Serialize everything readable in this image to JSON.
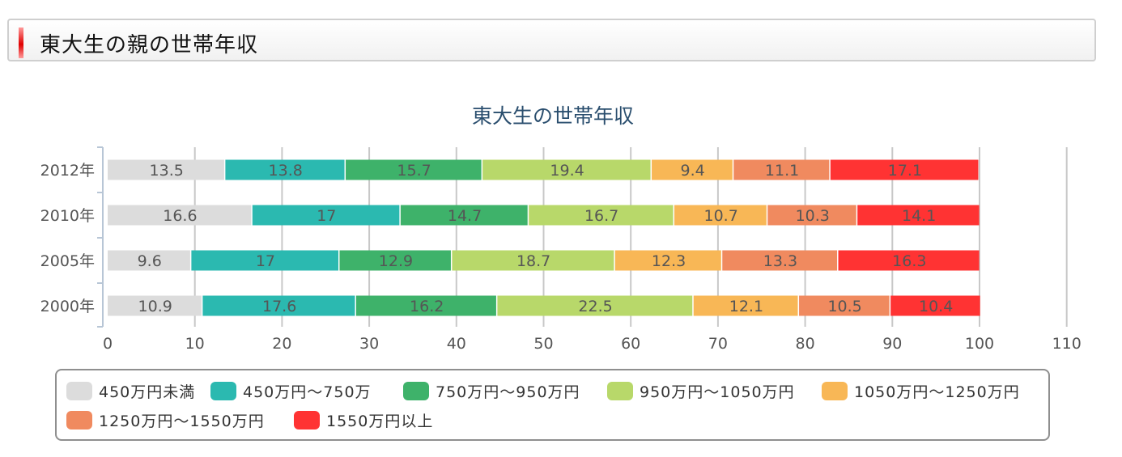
{
  "header": {
    "title": "東大生の親の世帯年収"
  },
  "chart_data": {
    "type": "bar",
    "orientation": "horizontal",
    "stacked": true,
    "title": "東大生の世帯年収",
    "xlabel": "",
    "ylabel": "",
    "xlim": [
      0,
      110
    ],
    "x_ticks": [
      "0",
      "10",
      "20",
      "30",
      "40",
      "50",
      "60",
      "70",
      "80",
      "90",
      "100",
      "110"
    ],
    "categories": [
      "2012年",
      "2010年",
      "2005年",
      "2000年"
    ],
    "series": [
      {
        "name": "450万円未満",
        "color": "#dcdcdc",
        "values": [
          13.5,
          16.6,
          9.6,
          10.9
        ]
      },
      {
        "name": "450万円～750万",
        "color": "#2bb9b0",
        "values": [
          13.8,
          17,
          17,
          17.6
        ]
      },
      {
        "name": "750万円～950万円",
        "color": "#3eb26a",
        "values": [
          15.7,
          14.7,
          12.9,
          16.2
        ]
      },
      {
        "name": "950万円～1050万円",
        "color": "#b8d86a",
        "values": [
          19.4,
          16.7,
          18.7,
          22.5
        ]
      },
      {
        "name": "1050万円～1250万円",
        "color": "#f8b756",
        "values": [
          9.4,
          10.7,
          12.3,
          12.1
        ]
      },
      {
        "name": "1250万円～1550万円",
        "color": "#f08a5f",
        "values": [
          11.1,
          10.3,
          13.3,
          10.5
        ]
      },
      {
        "name": "1550万円以上",
        "color": "#ff3333",
        "values": [
          17.1,
          14.1,
          16.3,
          10.4
        ]
      }
    ],
    "grid": true,
    "legend_position": "bottom"
  }
}
